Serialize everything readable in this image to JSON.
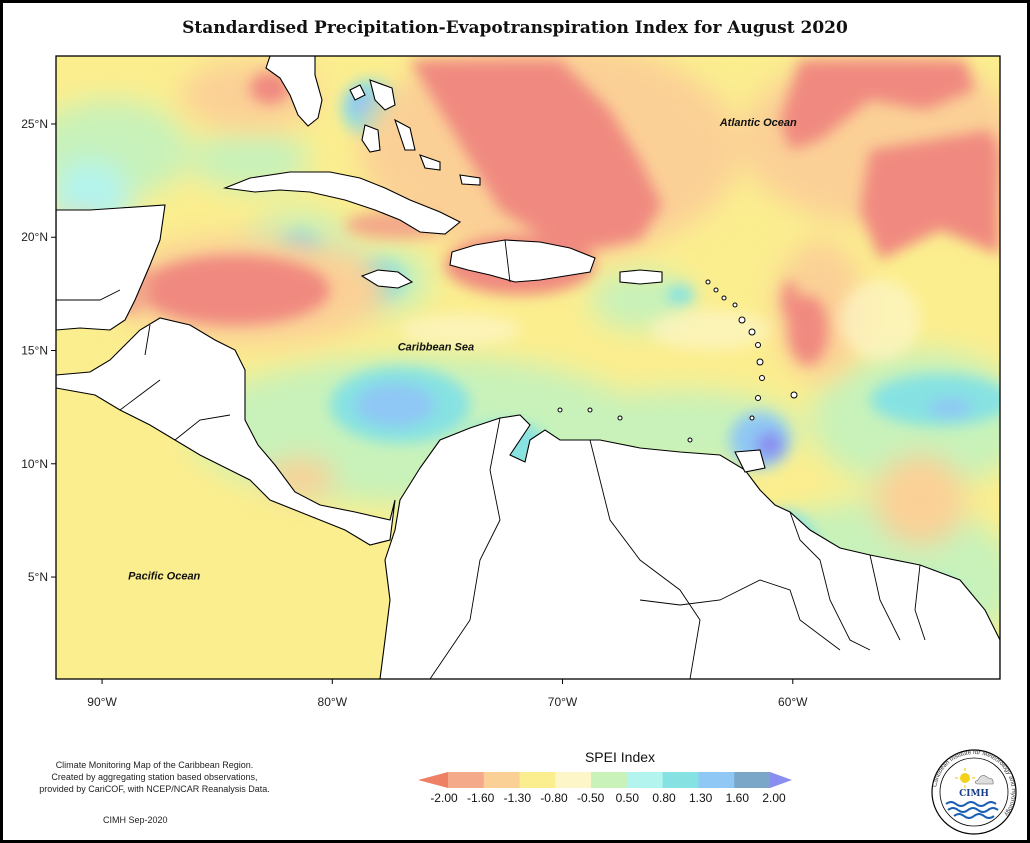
{
  "title": "Standardised Precipitation-Evapotranspiration Index for August 2020",
  "map": {
    "lon_range": [
      -92,
      -51
    ],
    "lat_range": [
      0.5,
      28
    ],
    "lat_ticks": [
      {
        "value": 25,
        "label": "25°N"
      },
      {
        "value": 20,
        "label": "20°N"
      },
      {
        "value": 15,
        "label": "15°N"
      },
      {
        "value": 10,
        "label": "10°N"
      },
      {
        "value": 5,
        "label": "5°N"
      }
    ],
    "lon_ticks": [
      {
        "value": -90,
        "label": "90°W"
      },
      {
        "value": -80,
        "label": "80°W"
      },
      {
        "value": -70,
        "label": "70°W"
      },
      {
        "value": -60,
        "label": "60°W"
      }
    ],
    "water_labels": [
      {
        "text": "Atlantic Ocean",
        "lon": -61.5,
        "lat": 24.9
      },
      {
        "text": "Caribbean Sea",
        "lon": -75.5,
        "lat": 15.0
      },
      {
        "text": "Pacific Ocean",
        "lon": -87.3,
        "lat": 4.9
      }
    ]
  },
  "legend": {
    "title": "SPEI Index",
    "tick_labels": [
      "-2.00",
      "-1.60",
      "-1.30",
      "-0.80",
      "-0.50",
      "0.50",
      "0.80",
      "1.30",
      "1.60",
      "2.00"
    ],
    "colors": [
      "#ee8066",
      "#f3a98a",
      "#fbd096",
      "#fbee8f",
      "#fdf6c8",
      "#c8f2ba",
      "#b3f4ee",
      "#86e2e2",
      "#8fc8f4",
      "#7aa6c8",
      "#8a8ef0"
    ]
  },
  "credit": {
    "lines": [
      "Climate Monitoring Map of the Caribbean Region.",
      "Created by aggregating station based observations,",
      "provided by CariCOF, with NCEP/NCAR Reanalysis Data."
    ],
    "stamp": "CIMH Sep-2020"
  },
  "logo": {
    "name": "CIMH",
    "ring_text": "Caribbean Institute for Meteorology and Hydrology"
  }
}
